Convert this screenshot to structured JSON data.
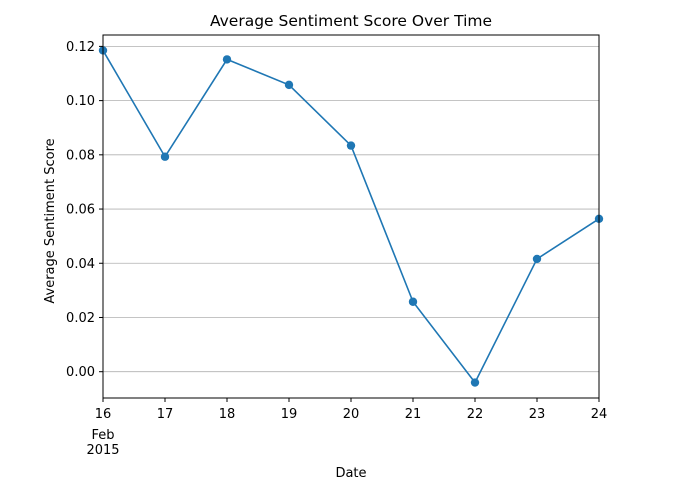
{
  "chart_data": {
    "type": "line",
    "title": "Average Sentiment Score Over Time",
    "xlabel": "Date",
    "ylabel": "Average Sentiment Score",
    "x": [
      "2015-02-16",
      "2015-02-17",
      "2015-02-18",
      "2015-02-19",
      "2015-02-20",
      "2015-02-21",
      "2015-02-22",
      "2015-02-23",
      "2015-02-24"
    ],
    "x_tick_labels": [
      "16",
      "17",
      "18",
      "19",
      "20",
      "21",
      "22",
      "23",
      "24"
    ],
    "x_tick_sublabels": [
      "Feb",
      "2015"
    ],
    "series": [
      {
        "values": [
          0.1185,
          0.0793,
          0.1152,
          0.1058,
          0.0834,
          0.0258,
          -0.004,
          0.0416,
          0.0564
        ],
        "color": "#1f77b4",
        "marker": "circle"
      }
    ],
    "ylim": [
      -0.0097,
      0.1242
    ],
    "y_ticks": [
      0.0,
      0.02,
      0.04,
      0.06,
      0.08,
      0.1,
      0.12
    ],
    "y_tick_labels": [
      "0.00",
      "0.02",
      "0.04",
      "0.06",
      "0.08",
      "0.10",
      "0.12"
    ],
    "grid": "horizontal",
    "legend": "none"
  }
}
